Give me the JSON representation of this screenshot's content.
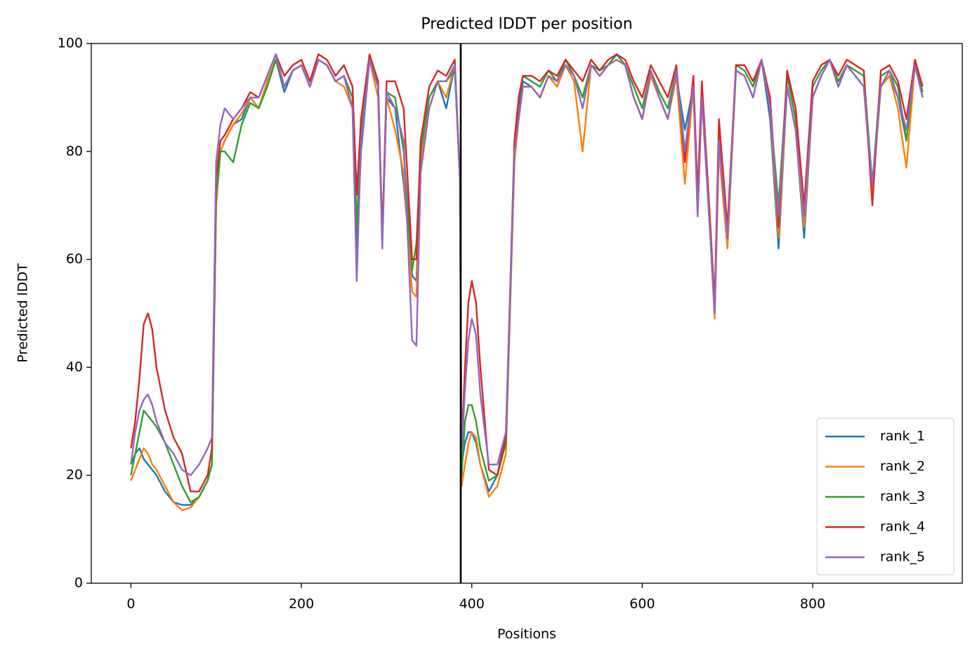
{
  "chart_data": {
    "type": "line",
    "title": "Predicted lDDT per position",
    "xlabel": "Positions",
    "ylabel": "Predicted lDDT",
    "xlim": [
      -46.5,
      975.5
    ],
    "ylim": [
      0,
      100
    ],
    "xticks": [
      0,
      200,
      400,
      600,
      800
    ],
    "yticks": [
      0,
      20,
      40,
      60,
      80,
      100
    ],
    "grid": false,
    "legend": "lower right",
    "vline": 387,
    "vline_color": "#000000",
    "x": [
      0,
      5,
      10,
      15,
      20,
      25,
      30,
      40,
      50,
      60,
      70,
      80,
      90,
      95,
      100,
      105,
      110,
      120,
      130,
      140,
      150,
      160,
      170,
      180,
      190,
      200,
      210,
      220,
      230,
      240,
      250,
      260,
      265,
      270,
      280,
      290,
      295,
      300,
      310,
      320,
      330,
      335,
      340,
      350,
      360,
      370,
      380,
      386,
      388,
      392,
      396,
      400,
      405,
      410,
      420,
      430,
      440,
      450,
      455,
      460,
      470,
      480,
      490,
      500,
      510,
      520,
      530,
      540,
      550,
      560,
      570,
      580,
      590,
      600,
      610,
      620,
      630,
      640,
      650,
      660,
      665,
      670,
      680,
      685,
      690,
      700,
      710,
      720,
      730,
      740,
      750,
      760,
      770,
      780,
      790,
      800,
      810,
      820,
      830,
      840,
      850,
      860,
      870,
      880,
      890,
      900,
      910,
      920,
      929
    ],
    "series": [
      {
        "name": "rank_1",
        "color": "#1f77b4",
        "values": [
          22,
          24,
          25,
          23,
          22,
          21,
          20,
          17,
          15,
          14.5,
          14.5,
          16,
          19,
          22,
          70,
          80,
          82,
          85,
          86,
          90,
          88,
          93,
          97,
          91,
          95,
          96,
          92,
          97,
          96,
          93,
          94,
          88,
          62,
          80,
          97,
          92,
          64,
          90,
          88,
          74,
          57,
          56,
          78,
          88,
          93,
          88,
          96,
          75,
          22,
          26,
          28,
          28,
          26,
          22,
          17,
          20,
          28,
          78,
          88,
          93,
          92,
          90,
          94,
          92,
          96,
          94,
          90,
          96,
          94,
          96,
          98,
          96,
          90,
          86,
          94,
          90,
          86,
          94,
          84,
          92,
          72,
          90,
          64,
          52,
          82,
          64,
          95,
          94,
          90,
          97,
          86,
          62,
          92,
          84,
          64,
          90,
          94,
          97,
          92,
          96,
          94,
          92,
          72,
          92,
          94,
          90,
          82,
          96,
          90
        ]
      },
      {
        "name": "rank_2",
        "color": "#ff7f0e",
        "values": [
          19,
          21,
          23,
          25,
          24,
          22,
          21,
          18,
          15,
          13.5,
          14,
          16,
          19,
          22,
          70,
          80,
          82,
          85,
          87,
          90,
          88,
          93,
          97,
          92,
          95,
          96,
          92,
          97,
          96,
          93,
          92,
          88,
          66,
          82,
          97,
          90,
          64,
          90,
          84,
          76,
          54,
          53,
          78,
          88,
          93,
          90,
          96,
          75,
          18,
          22,
          26,
          28,
          27,
          22,
          16,
          18,
          24,
          78,
          86,
          92,
          92,
          90,
          94,
          92,
          96,
          93,
          80,
          96,
          94,
          96,
          98,
          96,
          90,
          86,
          94,
          90,
          86,
          94,
          74,
          92,
          68,
          90,
          64,
          49,
          80,
          62,
          95,
          94,
          90,
          97,
          88,
          64,
          92,
          84,
          66,
          90,
          94,
          97,
          92,
          96,
          94,
          92,
          72,
          92,
          94,
          88,
          77,
          96,
          90
        ]
      },
      {
        "name": "rank_3",
        "color": "#2ca02c",
        "values": [
          20,
          24,
          28,
          32,
          31,
          30,
          29,
          26,
          22,
          18,
          15,
          16,
          19,
          22,
          72,
          80,
          80,
          78,
          85,
          89,
          88,
          92,
          97,
          92,
          95,
          96,
          92,
          97,
          96,
          93,
          94,
          90,
          66,
          84,
          97,
          92,
          64,
          91,
          90,
          80,
          58,
          63,
          80,
          90,
          93,
          93,
          95,
          75,
          20,
          30,
          33,
          33,
          30,
          25,
          19,
          20,
          26,
          80,
          90,
          94,
          93,
          92,
          95,
          93,
          97,
          94,
          90,
          96,
          95,
          96,
          98,
          96,
          92,
          88,
          95,
          91,
          88,
          95,
          80,
          93,
          70,
          92,
          64,
          50,
          84,
          64,
          96,
          95,
          92,
          97,
          88,
          70,
          94,
          86,
          68,
          92,
          95,
          97,
          93,
          96,
          95,
          94,
          74,
          94,
          95,
          92,
          82,
          97,
          91
        ]
      },
      {
        "name": "rank_4",
        "color": "#d62728",
        "values": [
          25,
          30,
          38,
          48,
          50,
          47,
          40,
          32,
          27,
          24,
          17,
          17,
          20,
          25,
          75,
          82,
          83,
          86,
          88,
          91,
          90,
          94,
          98,
          94,
          96,
          97,
          93,
          98,
          97,
          94,
          96,
          92,
          72,
          86,
          98,
          93,
          64,
          93,
          93,
          88,
          60,
          60,
          82,
          92,
          95,
          94,
          97,
          75,
          25,
          40,
          52,
          56,
          52,
          40,
          21,
          20,
          27,
          82,
          90,
          94,
          94,
          93,
          95,
          94,
          97,
          95,
          93,
          97,
          95,
          97,
          98,
          97,
          93,
          90,
          96,
          93,
          90,
          96,
          78,
          94,
          72,
          93,
          66,
          52,
          86,
          66,
          96,
          96,
          93,
          97,
          90,
          66,
          95,
          88,
          70,
          93,
          96,
          97,
          94,
          97,
          96,
          95,
          70,
          95,
          96,
          93,
          86,
          97,
          92
        ]
      },
      {
        "name": "rank_5",
        "color": "#9467bd",
        "values": [
          22,
          28,
          32,
          34,
          35,
          33,
          30,
          26,
          24,
          21,
          20,
          22,
          25,
          27,
          78,
          85,
          88,
          86,
          88,
          90,
          90,
          94,
          98,
          92,
          95,
          96,
          92,
          97,
          96,
          93,
          94,
          88,
          56,
          82,
          97,
          92,
          62,
          91,
          88,
          82,
          45,
          44,
          76,
          88,
          93,
          93,
          96,
          75,
          24,
          36,
          45,
          49,
          46,
          35,
          22,
          22,
          28,
          80,
          86,
          92,
          92,
          90,
          94,
          93,
          96,
          94,
          88,
          96,
          94,
          96,
          97,
          96,
          90,
          86,
          95,
          90,
          86,
          95,
          80,
          92,
          68,
          90,
          64,
          50,
          82,
          64,
          95,
          94,
          90,
          97,
          88,
          68,
          92,
          84,
          68,
          90,
          94,
          97,
          92,
          96,
          94,
          92,
          74,
          92,
          95,
          90,
          84,
          96,
          90
        ]
      }
    ]
  }
}
